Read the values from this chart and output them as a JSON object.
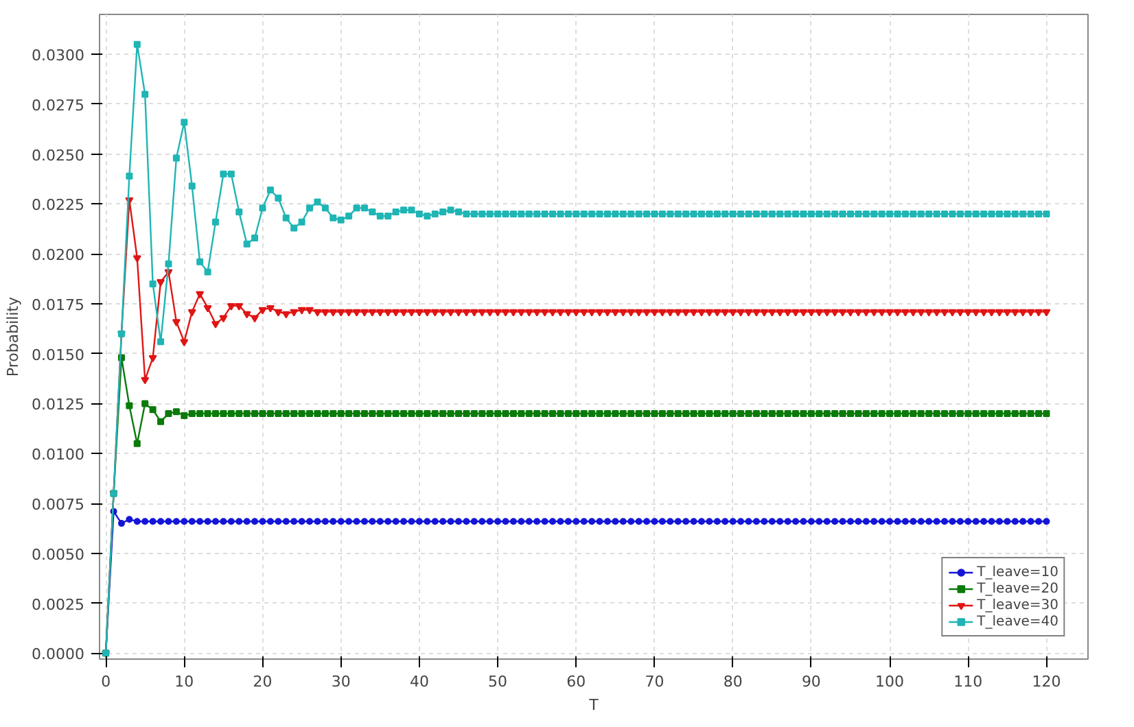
{
  "chart_data": {
    "type": "line",
    "xlabel": "T",
    "ylabel": "Probability",
    "x": [
      0,
      1,
      2,
      3,
      4,
      5,
      6,
      7,
      8,
      9,
      10,
      11,
      12,
      13,
      14,
      15,
      16,
      17,
      18,
      19,
      20,
      21,
      22,
      23,
      24,
      25,
      26,
      27,
      28,
      29,
      30,
      31,
      32,
      33,
      34,
      35,
      36,
      37,
      38,
      39,
      40,
      41,
      42,
      43,
      44,
      45,
      46,
      47,
      48,
      49,
      50,
      51,
      52,
      53,
      54,
      55,
      56,
      57,
      58,
      59,
      60,
      61,
      62,
      63,
      64,
      65,
      66,
      67,
      68,
      69,
      70,
      71,
      72,
      73,
      74,
      75,
      76,
      77,
      78,
      79,
      80,
      81,
      82,
      83,
      84,
      85,
      86,
      87,
      88,
      89,
      90,
      91,
      92,
      93,
      94,
      95,
      96,
      97,
      98,
      99,
      100,
      101,
      102,
      103,
      104,
      105,
      106,
      107,
      108,
      109,
      110,
      111,
      112,
      113,
      114,
      115,
      116,
      117,
      118,
      119,
      120
    ],
    "xlim": [
      -0.8,
      125.3
    ],
    "xticks": [
      0,
      10,
      20,
      30,
      40,
      50,
      60,
      70,
      80,
      90,
      100,
      110,
      120
    ],
    "ylim": [
      -0.0003,
      0.032
    ],
    "yticks": [
      {
        "value": 0,
        "label": "0.0000"
      },
      {
        "value": 0.0025,
        "label": "0.0025"
      },
      {
        "value": 0.005,
        "label": "0.0050"
      },
      {
        "value": 0.0075,
        "label": "0.0075"
      },
      {
        "value": 0.01,
        "label": "0.0100"
      },
      {
        "value": 0.0125,
        "label": "0.0125"
      },
      {
        "value": 0.015,
        "label": "0.0150"
      },
      {
        "value": 0.0175,
        "label": "0.0175"
      },
      {
        "value": 0.02,
        "label": "0.0200"
      },
      {
        "value": 0.0225,
        "label": "0.0225"
      },
      {
        "value": 0.025,
        "label": "0.0250"
      },
      {
        "value": 0.0275,
        "label": "0.0275"
      },
      {
        "value": 0.03,
        "label": "0.0300"
      }
    ],
    "grid": true,
    "legend": "bottom right",
    "series": [
      {
        "name": "T_leave=10",
        "color": "#1515d8",
        "marker": "circle",
        "values": [
          0,
          0.0071,
          0.0065,
          0.0067,
          0.0066,
          0.0066,
          0.0066,
          0.0066,
          0.0066,
          0.0066,
          0.0066,
          0.0066,
          0.0066,
          0.0066,
          0.0066,
          0.0066,
          0.0066,
          0.0066,
          0.0066,
          0.0066,
          0.0066,
          0.0066,
          0.0066,
          0.0066,
          0.0066,
          0.0066,
          0.0066,
          0.0066,
          0.0066,
          0.0066,
          0.0066,
          0.0066,
          0.0066,
          0.0066,
          0.0066,
          0.0066,
          0.0066,
          0.0066,
          0.0066,
          0.0066,
          0.0066,
          0.0066,
          0.0066,
          0.0066,
          0.0066,
          0.0066,
          0.0066,
          0.0066,
          0.0066,
          0.0066,
          0.0066,
          0.0066,
          0.0066,
          0.0066,
          0.0066,
          0.0066,
          0.0066,
          0.0066,
          0.0066,
          0.0066,
          0.0066,
          0.0066,
          0.0066,
          0.0066,
          0.0066,
          0.0066,
          0.0066,
          0.0066,
          0.0066,
          0.0066,
          0.0066,
          0.0066,
          0.0066,
          0.0066,
          0.0066,
          0.0066,
          0.0066,
          0.0066,
          0.0066,
          0.0066,
          0.0066,
          0.0066,
          0.0066,
          0.0066,
          0.0066,
          0.0066,
          0.0066,
          0.0066,
          0.0066,
          0.0066,
          0.0066,
          0.0066,
          0.0066,
          0.0066,
          0.0066,
          0.0066,
          0.0066,
          0.0066,
          0.0066,
          0.0066,
          0.0066,
          0.0066,
          0.0066,
          0.0066,
          0.0066,
          0.0066,
          0.0066,
          0.0066,
          0.0066,
          0.0066,
          0.0066,
          0.0066,
          0.0066,
          0.0066,
          0.0066,
          0.0066,
          0.0066,
          0.0066,
          0.0066,
          0.0066,
          0.0066
        ]
      },
      {
        "name": "T_leave=20",
        "color": "#0a7a0a",
        "marker": "square",
        "values": [
          0,
          0.008,
          0.0148,
          0.0124,
          0.0105,
          0.0125,
          0.0122,
          0.0116,
          0.012,
          0.0121,
          0.0119,
          0.012,
          0.012,
          0.012,
          0.012,
          0.012,
          0.012,
          0.012,
          0.012,
          0.012,
          0.012,
          0.012,
          0.012,
          0.012,
          0.012,
          0.012,
          0.012,
          0.012,
          0.012,
          0.012,
          0.012,
          0.012,
          0.012,
          0.012,
          0.012,
          0.012,
          0.012,
          0.012,
          0.012,
          0.012,
          0.012,
          0.012,
          0.012,
          0.012,
          0.012,
          0.012,
          0.012,
          0.012,
          0.012,
          0.012,
          0.012,
          0.012,
          0.012,
          0.012,
          0.012,
          0.012,
          0.012,
          0.012,
          0.012,
          0.012,
          0.012,
          0.012,
          0.012,
          0.012,
          0.012,
          0.012,
          0.012,
          0.012,
          0.012,
          0.012,
          0.012,
          0.012,
          0.012,
          0.012,
          0.012,
          0.012,
          0.012,
          0.012,
          0.012,
          0.012,
          0.012,
          0.012,
          0.012,
          0.012,
          0.012,
          0.012,
          0.012,
          0.012,
          0.012,
          0.012,
          0.012,
          0.012,
          0.012,
          0.012,
          0.012,
          0.012,
          0.012,
          0.012,
          0.012,
          0.012,
          0.012,
          0.012,
          0.012,
          0.012,
          0.012,
          0.012,
          0.012,
          0.012,
          0.012,
          0.012,
          0.012,
          0.012,
          0.012,
          0.012,
          0.012,
          0.012,
          0.012,
          0.012,
          0.012,
          0.012,
          0.012
        ]
      },
      {
        "name": "T_leave=30",
        "color": "#e01515",
        "marker": "triangle",
        "values": [
          0,
          0.008,
          0.016,
          0.0227,
          0.0198,
          0.0137,
          0.0148,
          0.0186,
          0.0191,
          0.0166,
          0.0156,
          0.0171,
          0.018,
          0.0173,
          0.0165,
          0.0168,
          0.0174,
          0.0174,
          0.017,
          0.0168,
          0.0172,
          0.0173,
          0.0171,
          0.017,
          0.0171,
          0.0172,
          0.0172,
          0.0171,
          0.0171,
          0.0171,
          0.0171,
          0.0171,
          0.0171,
          0.0171,
          0.0171,
          0.0171,
          0.0171,
          0.0171,
          0.0171,
          0.0171,
          0.0171,
          0.0171,
          0.0171,
          0.0171,
          0.0171,
          0.0171,
          0.0171,
          0.0171,
          0.0171,
          0.0171,
          0.0171,
          0.0171,
          0.0171,
          0.0171,
          0.0171,
          0.0171,
          0.0171,
          0.0171,
          0.0171,
          0.0171,
          0.0171,
          0.0171,
          0.0171,
          0.0171,
          0.0171,
          0.0171,
          0.0171,
          0.0171,
          0.0171,
          0.0171,
          0.0171,
          0.0171,
          0.0171,
          0.0171,
          0.0171,
          0.0171,
          0.0171,
          0.0171,
          0.0171,
          0.0171,
          0.0171,
          0.0171,
          0.0171,
          0.0171,
          0.0171,
          0.0171,
          0.0171,
          0.0171,
          0.0171,
          0.0171,
          0.0171,
          0.0171,
          0.0171,
          0.0171,
          0.0171,
          0.0171,
          0.0171,
          0.0171,
          0.0171,
          0.0171,
          0.0171,
          0.0171,
          0.0171,
          0.0171,
          0.0171,
          0.0171,
          0.0171,
          0.0171,
          0.0171,
          0.0171,
          0.0171,
          0.0171,
          0.0171,
          0.0171,
          0.0171,
          0.0171,
          0.0171,
          0.0171,
          0.0171,
          0.0171,
          0.0171
        ]
      },
      {
        "name": "T_leave=40",
        "color": "#1fb5b5",
        "marker": "square",
        "values": [
          0,
          0.008,
          0.016,
          0.0239,
          0.0305,
          0.028,
          0.0185,
          0.0156,
          0.0195,
          0.0248,
          0.0266,
          0.0234,
          0.0196,
          0.0191,
          0.0216,
          0.024,
          0.024,
          0.0221,
          0.0205,
          0.0208,
          0.0223,
          0.0232,
          0.0228,
          0.0218,
          0.0213,
          0.0216,
          0.0223,
          0.0226,
          0.0223,
          0.0218,
          0.0217,
          0.0219,
          0.0223,
          0.0223,
          0.0221,
          0.0219,
          0.0219,
          0.0221,
          0.0222,
          0.0222,
          0.022,
          0.0219,
          0.022,
          0.0221,
          0.0222,
          0.0221,
          0.022,
          0.022,
          0.022,
          0.022,
          0.022,
          0.022,
          0.022,
          0.022,
          0.022,
          0.022,
          0.022,
          0.022,
          0.022,
          0.022,
          0.022,
          0.022,
          0.022,
          0.022,
          0.022,
          0.022,
          0.022,
          0.022,
          0.022,
          0.022,
          0.022,
          0.022,
          0.022,
          0.022,
          0.022,
          0.022,
          0.022,
          0.022,
          0.022,
          0.022,
          0.022,
          0.022,
          0.022,
          0.022,
          0.022,
          0.022,
          0.022,
          0.022,
          0.022,
          0.022,
          0.022,
          0.022,
          0.022,
          0.022,
          0.022,
          0.022,
          0.022,
          0.022,
          0.022,
          0.022,
          0.022,
          0.022,
          0.022,
          0.022,
          0.022,
          0.022,
          0.022,
          0.022,
          0.022,
          0.022,
          0.022,
          0.022,
          0.022,
          0.022,
          0.022,
          0.022,
          0.022,
          0.022,
          0.022,
          0.022,
          0.022
        ]
      }
    ]
  }
}
